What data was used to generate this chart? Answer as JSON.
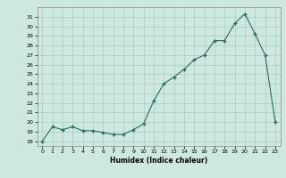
{
  "x": [
    0,
    1,
    2,
    3,
    4,
    5,
    6,
    7,
    8,
    9,
    10,
    11,
    12,
    13,
    14,
    15,
    16,
    17,
    18,
    19,
    20,
    21,
    22,
    23
  ],
  "y": [
    18.0,
    19.5,
    19.2,
    19.5,
    19.1,
    19.1,
    18.9,
    18.7,
    18.7,
    19.2,
    19.8,
    22.2,
    24.0,
    24.7,
    25.5,
    26.5,
    27.0,
    28.5,
    28.5,
    30.3,
    31.3,
    29.2,
    27.0,
    20.0
  ],
  "xlabel": "Humidex (Indice chaleur)",
  "line_color": "#2e6b5e",
  "marker_color": "#2e6b5e",
  "bg_color": "#cce8e0",
  "grid_color": "#aaccC4",
  "ylim": [
    17.5,
    32.0
  ],
  "xlim": [
    -0.5,
    23.5
  ],
  "yticks": [
    18,
    19,
    20,
    21,
    22,
    23,
    24,
    25,
    26,
    27,
    28,
    29,
    30,
    31
  ],
  "xticks": [
    0,
    1,
    2,
    3,
    4,
    5,
    6,
    7,
    8,
    9,
    10,
    11,
    12,
    13,
    14,
    15,
    16,
    17,
    18,
    19,
    20,
    21,
    22,
    23
  ]
}
